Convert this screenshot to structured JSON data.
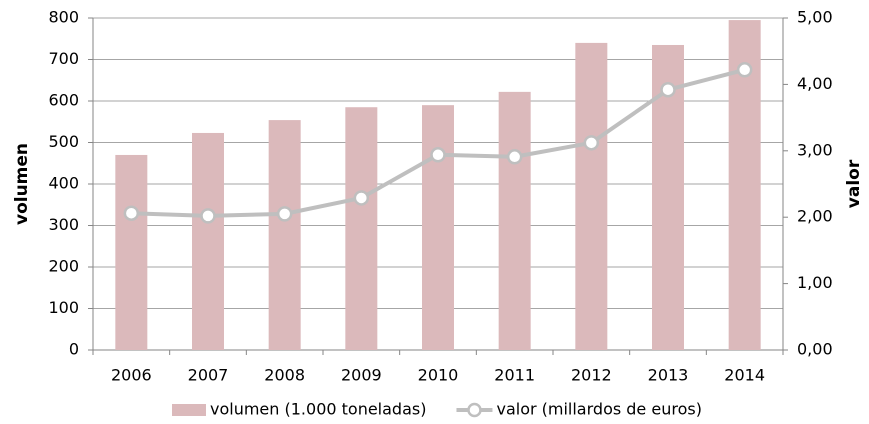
{
  "chart_data": {
    "type": "bar",
    "categories": [
      "2006",
      "2007",
      "2008",
      "2009",
      "2010",
      "2011",
      "2012",
      "2013",
      "2014"
    ],
    "series": [
      {
        "name": "volumen (1.000 toneladas)",
        "type": "bar",
        "color": "#dbb9bb",
        "values": [
          470,
          523,
          554,
          585,
          590,
          622,
          740,
          735,
          795
        ]
      },
      {
        "name": "valor (millardos de euros)",
        "type": "line",
        "axis": "y2",
        "color": "#bfbfbf",
        "values": [
          2.06,
          2.02,
          2.05,
          2.29,
          2.94,
          2.91,
          3.12,
          3.92,
          4.22
        ]
      }
    ],
    "ylabel": "volumen",
    "y2label": "valor",
    "ylim": [
      0,
      800
    ],
    "yticks": [
      0,
      100,
      200,
      300,
      400,
      500,
      600,
      700,
      800
    ],
    "y2lim": [
      0,
      5
    ],
    "y2ticks": [
      {
        "value": 0,
        "label": "0,00"
      },
      {
        "value": 1,
        "label": "1,00"
      },
      {
        "value": 2,
        "label": "2,00"
      },
      {
        "value": 3,
        "label": "3,00"
      },
      {
        "value": 4,
        "label": "4,00"
      },
      {
        "value": 5,
        "label": "5,00"
      }
    ],
    "grid": true,
    "legend": "bottom"
  }
}
